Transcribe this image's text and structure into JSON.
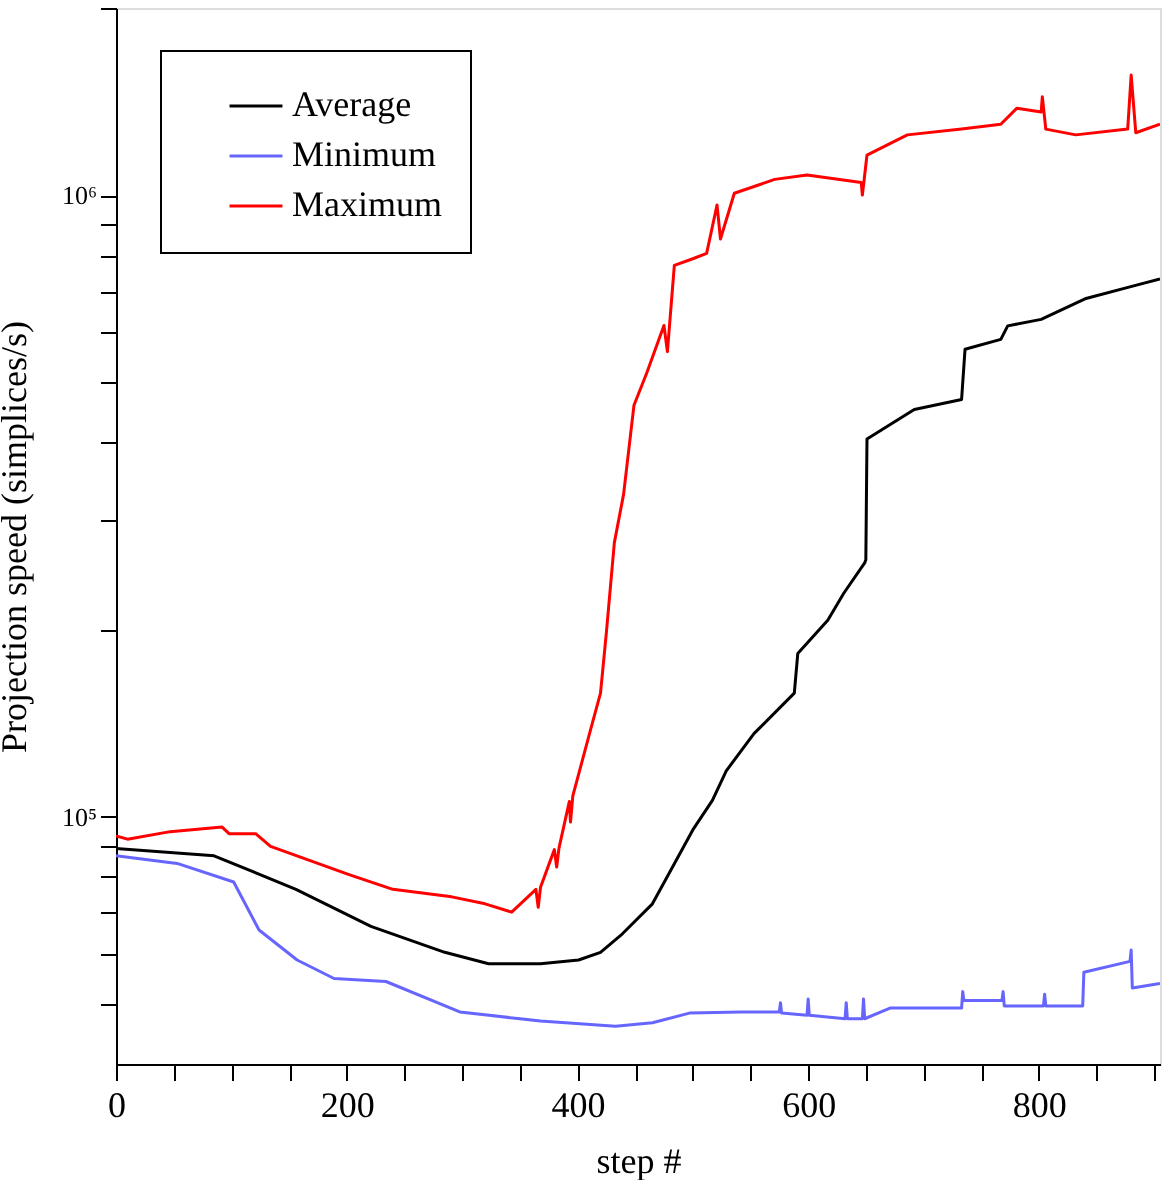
{
  "chart_data": {
    "type": "line",
    "xlabel": "step #",
    "ylabel": "Projection speed (simplices/s)",
    "log": true,
    "grid": false,
    "legend": "top left",
    "marker": "none",
    "line_style": "solid",
    "xlim": [
      0,
      905
    ],
    "xticks": [
      0,
      {
        "value": 50,
        "label": null
      },
      {
        "value": 100,
        "label": null
      },
      {
        "value": 150,
        "label": null
      },
      200,
      {
        "value": 250,
        "label": null
      },
      {
        "value": 300,
        "label": null
      },
      {
        "value": 350,
        "label": null
      },
      400,
      {
        "value": 450,
        "label": null
      },
      {
        "value": 500,
        "label": null
      },
      {
        "value": 550,
        "label": null
      },
      600,
      {
        "value": 650,
        "label": null
      },
      {
        "value": 700,
        "label": null
      },
      {
        "value": 750,
        "label": null
      },
      800,
      {
        "value": 850,
        "label": null
      },
      {
        "value": 900,
        "label": null
      }
    ],
    "ylim": [
      40000,
      2000000
    ],
    "yticks": [
      {
        "value": 50000,
        "label": null
      },
      {
        "value": 60000,
        "label": null
      },
      {
        "value": 70000,
        "label": null
      },
      {
        "value": 80000,
        "label": null
      },
      {
        "value": 90000,
        "label": null
      },
      {
        "value": 100000,
        "label": "10⁵"
      },
      {
        "value": 200000,
        "label": null
      },
      {
        "value": 300000,
        "label": null
      },
      {
        "value": 400000,
        "label": null
      },
      {
        "value": 500000,
        "label": null
      },
      {
        "value": 600000,
        "label": null
      },
      {
        "value": 700000,
        "label": null
      },
      {
        "value": 800000,
        "label": null
      },
      {
        "value": 900000,
        "label": null
      },
      {
        "value": 1000000,
        "label": "10⁶"
      },
      {
        "value": 2000000,
        "label": null
      }
    ],
    "series": [
      {
        "name": "Average",
        "color": "#000000",
        "x": [
          0,
          85,
          156,
          221,
          285,
          323,
          368,
          401,
          420,
          439,
          465,
          484,
          500,
          517,
          529,
          553,
          588,
          591,
          617,
          631,
          649,
          650,
          651,
          692,
          733,
          736,
          767,
          773,
          802,
          840,
          883,
          905
        ],
        "values": [
          88900,
          86500,
          76400,
          66600,
          60500,
          58000,
          58000,
          58800,
          60500,
          64800,
          72400,
          84000,
          95200,
          106200,
          118500,
          136000,
          158000,
          183000,
          207000,
          229000,
          256000,
          259000,
          405000,
          452000,
          469000,
          565000,
          586000,
          616000,
          631000,
          681000,
          715000,
          733000
        ]
      },
      {
        "name": "Minimum",
        "color": "#6666ff",
        "x": [
          0,
          53,
          102,
          124,
          157,
          189,
          234,
          298,
          368,
          433,
          465,
          497,
          542,
          575,
          576,
          577,
          599,
          600,
          601,
          632,
          633,
          634,
          635,
          647,
          648,
          649,
          671,
          733,
          734,
          735,
          768,
          769,
          770,
          804,
          805,
          806,
          838,
          839,
          879,
          880,
          881,
          905
        ],
        "values": [
          86500,
          84100,
          78500,
          65700,
          58800,
          54900,
          54300,
          48500,
          46900,
          46000,
          46600,
          48300,
          48500,
          48500,
          50200,
          48300,
          47900,
          50900,
          47900,
          47300,
          50200,
          47300,
          47300,
          47300,
          50900,
          47300,
          49200,
          49200,
          52300,
          50600,
          50600,
          52300,
          49600,
          49600,
          51800,
          49600,
          49600,
          56200,
          58500,
          61000,
          53000,
          53900
        ]
      },
      {
        "name": "Maximum",
        "color": "#ff0000",
        "x": [
          0,
          10,
          47,
          92,
          98,
          121,
          134,
          202,
          240,
          291,
          320,
          343,
          364,
          366,
          368,
          380,
          382,
          384,
          393,
          394,
          396,
          410,
          420,
          425,
          432,
          440,
          449,
          460,
          475,
          478,
          484,
          500,
          512,
          521,
          524,
          536,
          571,
          599,
          646,
          647,
          651,
          686,
          733,
          767,
          781,
          802,
          803,
          806,
          832,
          877,
          880,
          884,
          905
        ],
        "values": [
          93100,
          92000,
          94600,
          96200,
          93900,
          93900,
          89600,
          80700,
          76400,
          74300,
          72400,
          70200,
          76400,
          71500,
          77000,
          88500,
          83000,
          89000,
          105800,
          98000,
          108000,
          135000,
          158000,
          197000,
          276000,
          330000,
          459000,
          517000,
          617000,
          560000,
          771000,
          790000,
          806000,
          964000,
          850000,
          1007000,
          1060000,
          1077000,
          1048000,
          1000000,
          1160000,
          1250000,
          1277000,
          1300000,
          1380000,
          1360000,
          1440000,
          1277000,
          1250000,
          1277000,
          1560000,
          1260000,
          1300000
        ]
      }
    ]
  }
}
